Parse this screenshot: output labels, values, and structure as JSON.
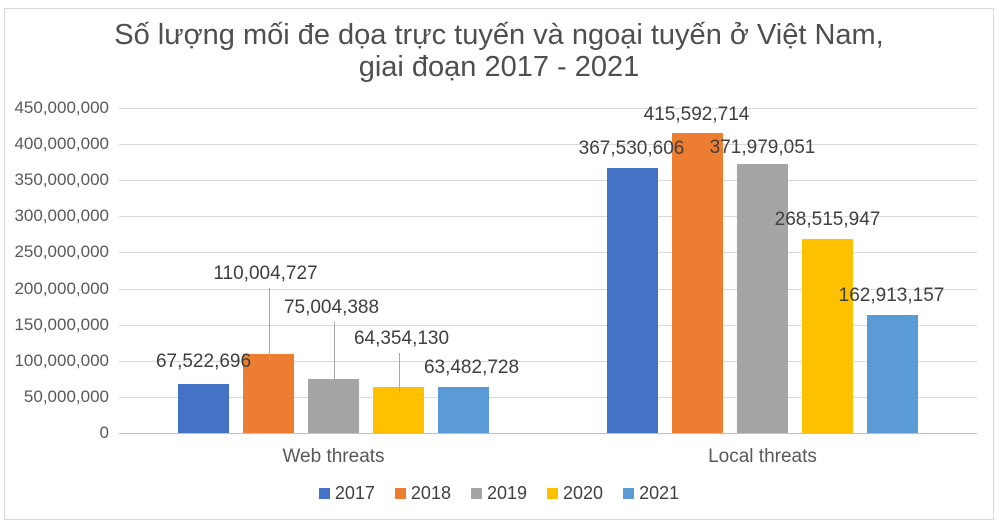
{
  "chart_data": {
    "type": "bar",
    "title": "Số lượng mối đe dọa trực tuyến và ngoại tuyến ở Việt Nam, giai đoạn 2017 - 2021",
    "categories": [
      "Web threats",
      "Local threats"
    ],
    "series": [
      {
        "name": "2017",
        "color": "#4472C4",
        "values": [
          67522696,
          367530606
        ]
      },
      {
        "name": "2018",
        "color": "#ED7D31",
        "values": [
          110004727,
          415592714
        ]
      },
      {
        "name": "2019",
        "color": "#A5A5A5",
        "values": [
          75004388,
          371979051
        ]
      },
      {
        "name": "2020",
        "color": "#FFC000",
        "values": [
          64354130,
          268515947
        ]
      },
      {
        "name": "2021",
        "color": "#5B9BD5",
        "values": [
          63482728,
          162913157
        ]
      }
    ],
    "ylim": [
      0,
      450000000
    ],
    "ytick_step": 50000000,
    "grid": true,
    "legend_position": "bottom",
    "data_labels": true,
    "data_label_callout_lines": {
      "Web threats": [
        "2018",
        "2019",
        "2020"
      ],
      "Local threats": []
    }
  }
}
